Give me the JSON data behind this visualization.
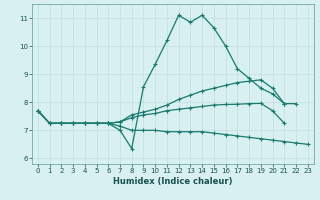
{
  "xlabel": "Humidex (Indice chaleur)",
  "x": [
    0,
    1,
    2,
    3,
    4,
    5,
    6,
    7,
    8,
    9,
    10,
    11,
    12,
    13,
    14,
    15,
    16,
    17,
    18,
    19,
    20,
    21,
    22,
    23
  ],
  "line1": [
    7.7,
    7.25,
    7.25,
    7.25,
    7.25,
    7.25,
    7.25,
    7.0,
    6.35,
    8.55,
    9.35,
    10.2,
    11.1,
    10.85,
    11.1,
    10.65,
    10.0,
    9.2,
    8.85,
    8.5,
    8.3,
    7.95,
    7.95,
    null
  ],
  "line2": [
    7.7,
    7.25,
    7.25,
    7.25,
    7.25,
    7.25,
    7.25,
    7.3,
    7.55,
    7.65,
    7.75,
    7.9,
    8.1,
    8.25,
    8.4,
    8.5,
    8.6,
    8.7,
    8.75,
    8.8,
    8.5,
    7.95,
    null,
    null
  ],
  "line3": [
    7.7,
    7.25,
    7.25,
    7.25,
    7.25,
    7.25,
    7.25,
    7.3,
    7.45,
    7.55,
    7.6,
    7.7,
    7.75,
    7.8,
    7.85,
    7.9,
    7.92,
    7.93,
    7.95,
    7.96,
    7.7,
    7.25,
    null,
    null
  ],
  "line4": [
    7.7,
    7.25,
    7.25,
    7.25,
    7.25,
    7.25,
    7.25,
    7.15,
    7.0,
    7.0,
    7.0,
    6.95,
    6.95,
    6.95,
    6.95,
    6.9,
    6.85,
    6.8,
    6.75,
    6.7,
    6.65,
    6.6,
    6.55,
    6.5
  ],
  "line_color": "#1a7a6e",
  "bg_color": "#d8f0f0",
  "grid_color": "#c0dede",
  "ylim": [
    5.8,
    11.5
  ],
  "xlim": [
    -0.5,
    23.5
  ],
  "yticks": [
    6,
    7,
    8,
    9,
    10,
    11
  ],
  "xticks": [
    0,
    1,
    2,
    3,
    4,
    5,
    6,
    7,
    8,
    9,
    10,
    11,
    12,
    13,
    14,
    15,
    16,
    17,
    18,
    19,
    20,
    21,
    22,
    23
  ]
}
